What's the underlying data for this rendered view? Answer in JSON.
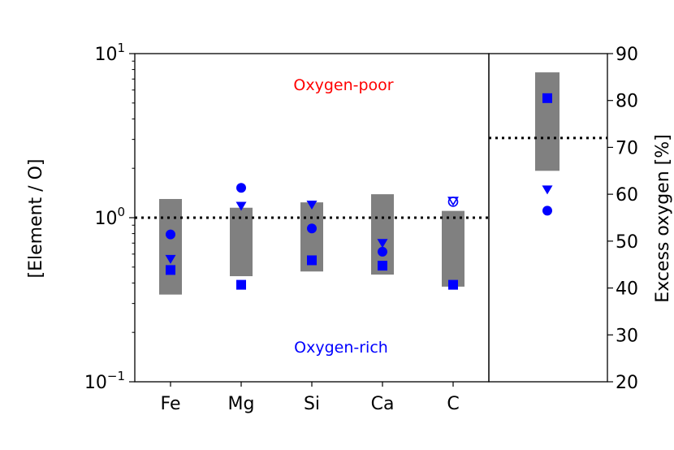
{
  "chart_data": {
    "type": "scatter",
    "title": "",
    "ylabel_left": "[Element / O]",
    "ylabel_right": "Excess oxygen [%]",
    "yscale_left": "log",
    "ylim_left": [
      0.1,
      10
    ],
    "yticks_left": [
      {
        "value": 0.1,
        "base": "10",
        "exp": "−1"
      },
      {
        "value": 1,
        "base": "10",
        "exp": "0"
      },
      {
        "value": 10,
        "base": "10",
        "exp": "1"
      }
    ],
    "ylim_right": [
      20,
      90
    ],
    "yticks_right": [
      "20",
      "30",
      "40",
      "50",
      "60",
      "70",
      "80",
      "90"
    ],
    "categories": [
      "Fe",
      "Mg",
      "Si",
      "Ca",
      "C"
    ],
    "annotations": [
      {
        "text": "Oxygen-poor",
        "color": "#ff0000"
      },
      {
        "text": "Oxygen-rich",
        "color": "#0000ff"
      }
    ],
    "reference_lines": {
      "element_ratio": 1.0,
      "excess_oxygen_percent": 72
    },
    "ranges": [
      {
        "category": "Fe",
        "low": 0.34,
        "high": 1.3
      },
      {
        "category": "Mg",
        "low": 0.44,
        "high": 1.15
      },
      {
        "category": "Si",
        "low": 0.47,
        "high": 1.24
      },
      {
        "category": "Ca",
        "low": 0.45,
        "high": 1.39
      },
      {
        "category": "C",
        "low": 0.38,
        "high": 1.1
      }
    ],
    "series": [
      {
        "marker": "circle",
        "color": "#0000ff",
        "values": [
          0.79,
          1.52,
          0.86,
          0.62,
          null
        ]
      },
      {
        "marker": "triangle",
        "color": "#0000ff",
        "values": [
          0.56,
          1.18,
          1.2,
          0.7,
          null
        ]
      },
      {
        "marker": "square",
        "color": "#0000ff",
        "values": [
          0.48,
          0.39,
          0.55,
          0.51,
          0.39
        ]
      },
      {
        "marker": "open-circle",
        "color": "#0000ff",
        "values": [
          null,
          null,
          null,
          null,
          1.25
        ]
      },
      {
        "marker": "open-triangle",
        "color": "#0000ff",
        "values": [
          null,
          null,
          null,
          null,
          1.27
        ]
      }
    ],
    "excess_oxygen": {
      "range": {
        "low": 65,
        "high": 86
      },
      "points": [
        {
          "marker": "square",
          "value": 80.5
        },
        {
          "marker": "triangle",
          "value": 61
        },
        {
          "marker": "circle",
          "value": 56.5
        }
      ]
    },
    "colors": {
      "range_fill": "#808080",
      "markers": "#0000ff",
      "reference_line": "#000000"
    }
  }
}
